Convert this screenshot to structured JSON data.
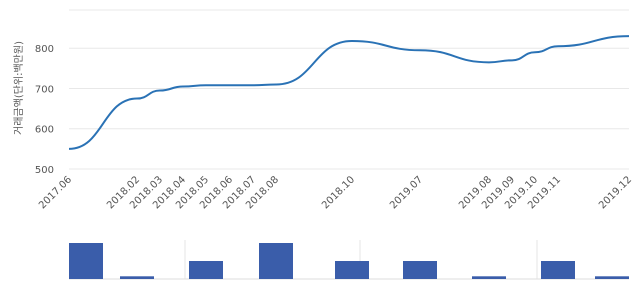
{
  "chart_data": [
    {
      "type": "line",
      "y_label": "거래금액(단위:백만원)",
      "categories": [
        "2017.06",
        "2018.02",
        "2018.03",
        "2018.04",
        "2018.05",
        "2018.06",
        "2018.07",
        "2018.08",
        "2018.10",
        "2019.07",
        "2019.08",
        "2019.09",
        "2019.10",
        "2019.11",
        "2019.12"
      ],
      "series": [
        {
          "color": "#2a72b5",
          "values": [
            550,
            675,
            695,
            705,
            708,
            708,
            708,
            710,
            818,
            795,
            765,
            770,
            790,
            805,
            830
          ]
        }
      ],
      "ylim": [
        500,
        895
      ],
      "yticks": [
        500,
        600,
        700,
        800
      ],
      "grid": true
    },
    {
      "type": "bar",
      "color": "#3a5daa",
      "categories": [
        "2017.06",
        "2018.02",
        "2018.05",
        "2018.08",
        "2018.10",
        "2019.07",
        "2019.08",
        "2019.11",
        "2019.12"
      ],
      "values": [
        2,
        0.15,
        1,
        2,
        1,
        1,
        0.15,
        1,
        0.15
      ],
      "ylim": [
        0,
        2
      ]
    }
  ]
}
